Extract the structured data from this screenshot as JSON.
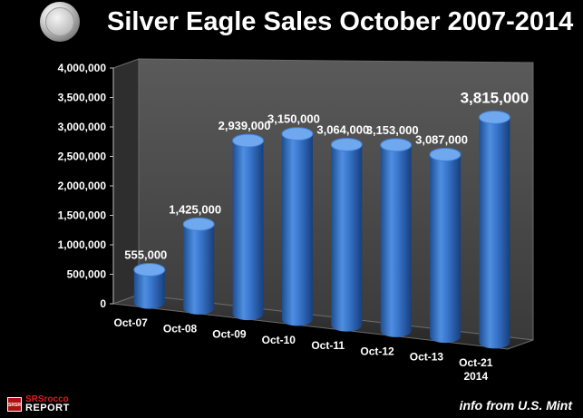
{
  "header": {
    "title": "Silver Eagle Sales October 2007-2014",
    "coin_icon": "silver-eagle-coin-icon"
  },
  "footer": {
    "source": "info from U.S. Mint",
    "logo_line1": "SRSrocco",
    "logo_line2": "REPORT",
    "logo_badge": "SRSR"
  },
  "chart_data": {
    "type": "bar",
    "title": "Silver Eagle Sales October 2007-2014",
    "xlabel": "",
    "ylabel": "",
    "ylim": [
      0,
      4000000
    ],
    "yticks": [
      0,
      500000,
      1000000,
      1500000,
      2000000,
      2500000,
      3000000,
      3500000,
      4000000
    ],
    "ytick_labels": [
      "0",
      "500,000",
      "1,000,000",
      "1,500,000",
      "2,000,000",
      "2,500,000",
      "3,000,000",
      "3,500,000",
      "4,000,000"
    ],
    "categories": [
      "Oct-07",
      "Oct-08",
      "Oct-09",
      "Oct-10",
      "Oct-11",
      "Oct-12",
      "Oct-13",
      "Oct-21"
    ],
    "category_sublabels": [
      "",
      "",
      "",
      "",
      "",
      "",
      "",
      "2014"
    ],
    "values": [
      555000,
      1425000,
      2939000,
      3150000,
      3064000,
      3153000,
      3087000,
      3815000
    ],
    "value_labels": [
      "555,000",
      "1,425,000",
      "2,939,000",
      "3,150,000",
      "3,064,000",
      "3,153,000",
      "3,087,000",
      "3,815,000"
    ],
    "grid": false,
    "legend": "none",
    "colors": {
      "bar": "#2f6fc4",
      "bar_light": "#6fa8ee",
      "bar_dark": "#163d78",
      "wall": "#4a4a4a",
      "text": "#ffffff"
    }
  }
}
